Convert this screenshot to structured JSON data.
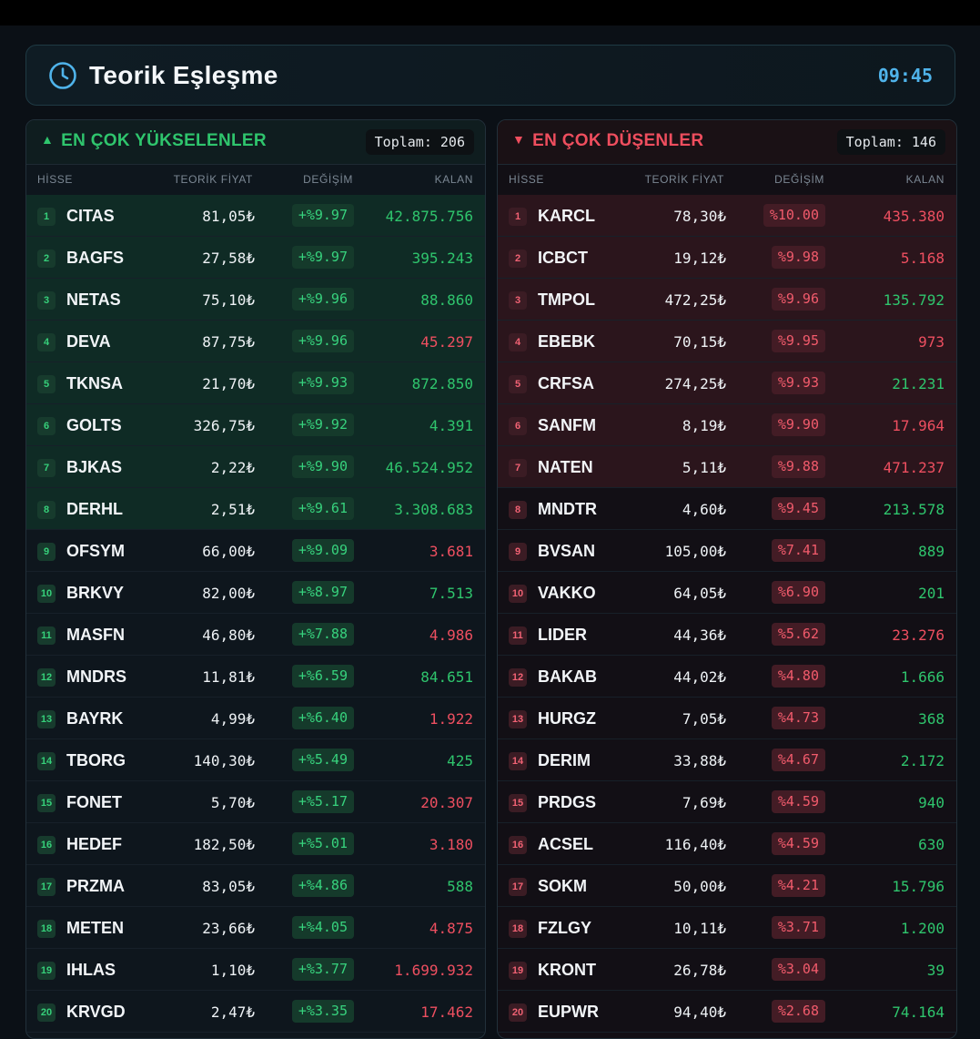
{
  "header": {
    "title": "Teorik Eşleşme",
    "time": "09:45"
  },
  "columns": {
    "symbol": "HİSSE",
    "price": "TEORİK FİYAT",
    "change": "DEĞİŞİM",
    "remaining": "KALAN"
  },
  "colors": {
    "up": "#2fc56d",
    "down": "#ee4f60",
    "accent": "#4fb3ea"
  },
  "gainers": {
    "title": "EN ÇOK YÜKSELENLER",
    "total": "Toplam: 206",
    "rows": [
      {
        "rank": "1",
        "symbol": "CITAS",
        "price": "81,05₺",
        "change": "+%9.97",
        "remaining": "42.875.756",
        "rem_dir": "up",
        "hl": true
      },
      {
        "rank": "2",
        "symbol": "BAGFS",
        "price": "27,58₺",
        "change": "+%9.97",
        "remaining": "395.243",
        "rem_dir": "up",
        "hl": true
      },
      {
        "rank": "3",
        "symbol": "NETAS",
        "price": "75,10₺",
        "change": "+%9.96",
        "remaining": "88.860",
        "rem_dir": "up",
        "hl": true
      },
      {
        "rank": "4",
        "symbol": "DEVA",
        "price": "87,75₺",
        "change": "+%9.96",
        "remaining": "45.297",
        "rem_dir": "down",
        "hl": true
      },
      {
        "rank": "5",
        "symbol": "TKNSA",
        "price": "21,70₺",
        "change": "+%9.93",
        "remaining": "872.850",
        "rem_dir": "up",
        "hl": true
      },
      {
        "rank": "6",
        "symbol": "GOLTS",
        "price": "326,75₺",
        "change": "+%9.92",
        "remaining": "4.391",
        "rem_dir": "up",
        "hl": true
      },
      {
        "rank": "7",
        "symbol": "BJKAS",
        "price": "2,22₺",
        "change": "+%9.90",
        "remaining": "46.524.952",
        "rem_dir": "up",
        "hl": true
      },
      {
        "rank": "8",
        "symbol": "DERHL",
        "price": "2,51₺",
        "change": "+%9.61",
        "remaining": "3.308.683",
        "rem_dir": "up",
        "hl": true
      },
      {
        "rank": "9",
        "symbol": "OFSYM",
        "price": "66,00₺",
        "change": "+%9.09",
        "remaining": "3.681",
        "rem_dir": "down",
        "hl": false
      },
      {
        "rank": "10",
        "symbol": "BRKVY",
        "price": "82,00₺",
        "change": "+%8.97",
        "remaining": "7.513",
        "rem_dir": "up",
        "hl": false
      },
      {
        "rank": "11",
        "symbol": "MASFN",
        "price": "46,80₺",
        "change": "+%7.88",
        "remaining": "4.986",
        "rem_dir": "down",
        "hl": false
      },
      {
        "rank": "12",
        "symbol": "MNDRS",
        "price": "11,81₺",
        "change": "+%6.59",
        "remaining": "84.651",
        "rem_dir": "up",
        "hl": false
      },
      {
        "rank": "13",
        "symbol": "BAYRK",
        "price": "4,99₺",
        "change": "+%6.40",
        "remaining": "1.922",
        "rem_dir": "down",
        "hl": false
      },
      {
        "rank": "14",
        "symbol": "TBORG",
        "price": "140,30₺",
        "change": "+%5.49",
        "remaining": "425",
        "rem_dir": "up",
        "hl": false
      },
      {
        "rank": "15",
        "symbol": "FONET",
        "price": "5,70₺",
        "change": "+%5.17",
        "remaining": "20.307",
        "rem_dir": "down",
        "hl": false
      },
      {
        "rank": "16",
        "symbol": "HEDEF",
        "price": "182,50₺",
        "change": "+%5.01",
        "remaining": "3.180",
        "rem_dir": "down",
        "hl": false
      },
      {
        "rank": "17",
        "symbol": "PRZMA",
        "price": "83,05₺",
        "change": "+%4.86",
        "remaining": "588",
        "rem_dir": "up",
        "hl": false
      },
      {
        "rank": "18",
        "symbol": "METEN",
        "price": "23,66₺",
        "change": "+%4.05",
        "remaining": "4.875",
        "rem_dir": "down",
        "hl": false
      },
      {
        "rank": "19",
        "symbol": "IHLAS",
        "price": "1,10₺",
        "change": "+%3.77",
        "remaining": "1.699.932",
        "rem_dir": "down",
        "hl": false
      },
      {
        "rank": "20",
        "symbol": "KRVGD",
        "price": "2,47₺",
        "change": "+%3.35",
        "remaining": "17.462",
        "rem_dir": "down",
        "hl": false
      }
    ]
  },
  "losers": {
    "title": "EN ÇOK DÜŞENLER",
    "total": "Toplam: 146",
    "rows": [
      {
        "rank": "1",
        "symbol": "KARCL",
        "price": "78,30₺",
        "change": "%10.00",
        "remaining": "435.380",
        "rem_dir": "down",
        "hl": true
      },
      {
        "rank": "2",
        "symbol": "ICBCT",
        "price": "19,12₺",
        "change": "%9.98",
        "remaining": "5.168",
        "rem_dir": "down",
        "hl": true
      },
      {
        "rank": "3",
        "symbol": "TMPOL",
        "price": "472,25₺",
        "change": "%9.96",
        "remaining": "135.792",
        "rem_dir": "up",
        "hl": true
      },
      {
        "rank": "4",
        "symbol": "EBEBK",
        "price": "70,15₺",
        "change": "%9.95",
        "remaining": "973",
        "rem_dir": "down",
        "hl": true
      },
      {
        "rank": "5",
        "symbol": "CRFSA",
        "price": "274,25₺",
        "change": "%9.93",
        "remaining": "21.231",
        "rem_dir": "up",
        "hl": true
      },
      {
        "rank": "6",
        "symbol": "SANFM",
        "price": "8,19₺",
        "change": "%9.90",
        "remaining": "17.964",
        "rem_dir": "down",
        "hl": true
      },
      {
        "rank": "7",
        "symbol": "NATEN",
        "price": "5,11₺",
        "change": "%9.88",
        "remaining": "471.237",
        "rem_dir": "down",
        "hl": true
      },
      {
        "rank": "8",
        "symbol": "MNDTR",
        "price": "4,60₺",
        "change": "%9.45",
        "remaining": "213.578",
        "rem_dir": "up",
        "hl": false
      },
      {
        "rank": "9",
        "symbol": "BVSAN",
        "price": "105,00₺",
        "change": "%7.41",
        "remaining": "889",
        "rem_dir": "up",
        "hl": false
      },
      {
        "rank": "10",
        "symbol": "VAKKO",
        "price": "64,05₺",
        "change": "%6.90",
        "remaining": "201",
        "rem_dir": "up",
        "hl": false
      },
      {
        "rank": "11",
        "symbol": "LIDER",
        "price": "44,36₺",
        "change": "%5.62",
        "remaining": "23.276",
        "rem_dir": "down",
        "hl": false
      },
      {
        "rank": "12",
        "symbol": "BAKAB",
        "price": "44,02₺",
        "change": "%4.80",
        "remaining": "1.666",
        "rem_dir": "up",
        "hl": false
      },
      {
        "rank": "13",
        "symbol": "HURGZ",
        "price": "7,05₺",
        "change": "%4.73",
        "remaining": "368",
        "rem_dir": "up",
        "hl": false
      },
      {
        "rank": "14",
        "symbol": "DERIM",
        "price": "33,88₺",
        "change": "%4.67",
        "remaining": "2.172",
        "rem_dir": "up",
        "hl": false
      },
      {
        "rank": "15",
        "symbol": "PRDGS",
        "price": "7,69₺",
        "change": "%4.59",
        "remaining": "940",
        "rem_dir": "up",
        "hl": false
      },
      {
        "rank": "16",
        "symbol": "ACSEL",
        "price": "116,40₺",
        "change": "%4.59",
        "remaining": "630",
        "rem_dir": "up",
        "hl": false
      },
      {
        "rank": "17",
        "symbol": "SOKM",
        "price": "50,00₺",
        "change": "%4.21",
        "remaining": "15.796",
        "rem_dir": "up",
        "hl": false
      },
      {
        "rank": "18",
        "symbol": "FZLGY",
        "price": "10,11₺",
        "change": "%3.71",
        "remaining": "1.200",
        "rem_dir": "up",
        "hl": false
      },
      {
        "rank": "19",
        "symbol": "KRONT",
        "price": "26,78₺",
        "change": "%3.04",
        "remaining": "39",
        "rem_dir": "up",
        "hl": false
      },
      {
        "rank": "20",
        "symbol": "EUPWR",
        "price": "94,40₺",
        "change": "%2.68",
        "remaining": "74.164",
        "rem_dir": "up",
        "hl": false
      }
    ]
  }
}
